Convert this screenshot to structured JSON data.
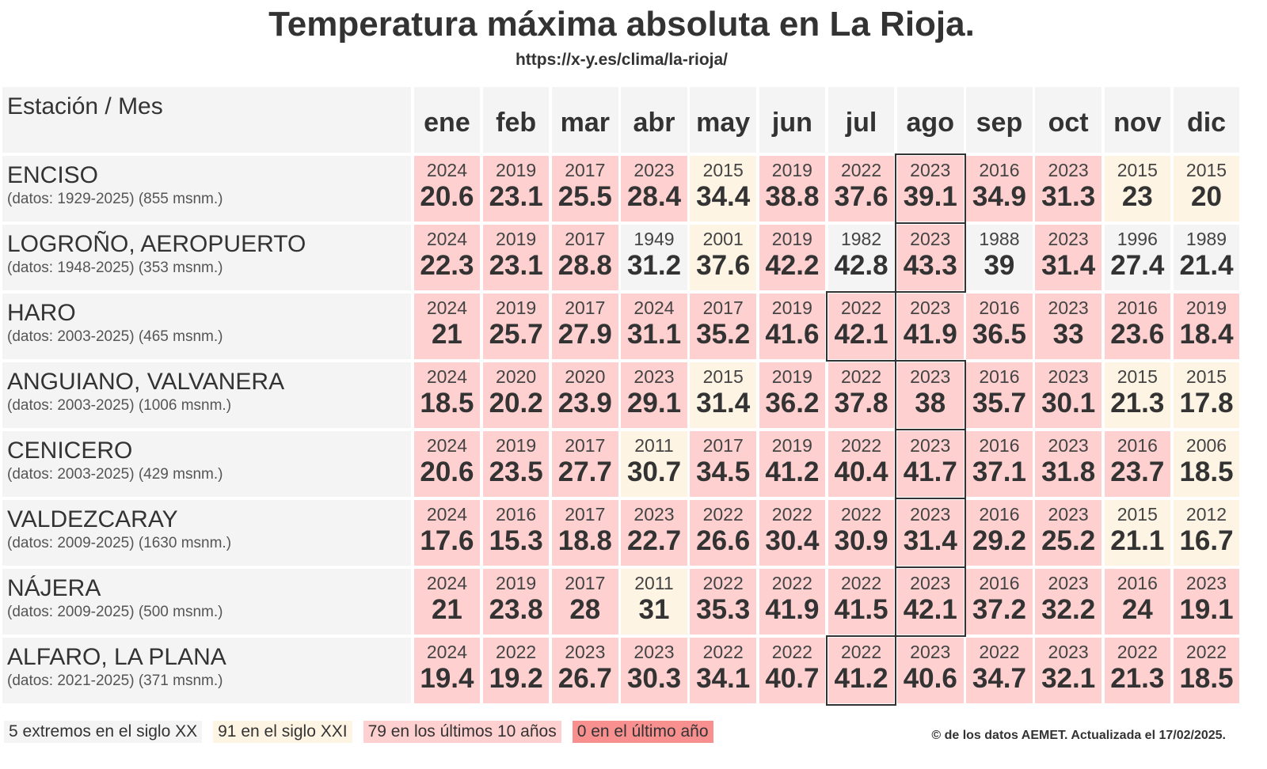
{
  "title": "Temperatura máxima absoluta en La Rioja.",
  "url": "https://x-y.es/clima/la-rioja/",
  "header_label": "Estación / Mes",
  "months": [
    "ene",
    "feb",
    "mar",
    "abr",
    "may",
    "jun",
    "jul",
    "ago",
    "sep",
    "oct",
    "nov",
    "dic"
  ],
  "colors": {
    "siglo_xx": "#f4f4f4",
    "siglo_xxi": "#fef4e4",
    "ultimos_10": "#ffd0d0",
    "ultimo_ano": "#f89090"
  },
  "stations": [
    {
      "name": "ENCISO",
      "info": "(datos: 1929-2025) (855 msnm.)",
      "years": [
        "2024",
        "2019",
        "2017",
        "2023",
        "2015",
        "2019",
        "2022",
        "2023",
        "2016",
        "2023",
        "2015",
        "2015"
      ],
      "values": [
        "20.6",
        "23.1",
        "25.5",
        "28.4",
        "34.4",
        "38.8",
        "37.6",
        "39.1",
        "34.9",
        "31.3",
        "23",
        "20"
      ]
    },
    {
      "name": "LOGROÑO, AEROPUERTO",
      "info": "(datos: 1948-2025) (353 msnm.)",
      "years": [
        "2024",
        "2019",
        "2017",
        "1949",
        "2001",
        "2019",
        "1982",
        "2023",
        "1988",
        "2023",
        "1996",
        "1989"
      ],
      "values": [
        "22.3",
        "23.1",
        "28.8",
        "31.2",
        "37.6",
        "42.2",
        "42.8",
        "43.3",
        "39",
        "31.4",
        "27.4",
        "21.4"
      ]
    },
    {
      "name": "HARO",
      "info": "(datos: 2003-2025) (465 msnm.)",
      "years": [
        "2024",
        "2019",
        "2017",
        "2024",
        "2017",
        "2019",
        "2022",
        "2023",
        "2016",
        "2023",
        "2016",
        "2019"
      ],
      "values": [
        "21",
        "25.7",
        "27.9",
        "31.1",
        "35.2",
        "41.6",
        "42.1",
        "41.9",
        "36.5",
        "33",
        "23.6",
        "18.4"
      ]
    },
    {
      "name": "ANGUIANO, VALVANERA",
      "info": "(datos: 2003-2025) (1006 msnm.)",
      "years": [
        "2024",
        "2020",
        "2020",
        "2023",
        "2015",
        "2019",
        "2022",
        "2023",
        "2016",
        "2023",
        "2015",
        "2015"
      ],
      "values": [
        "18.5",
        "20.2",
        "23.9",
        "29.1",
        "31.4",
        "36.2",
        "37.8",
        "38",
        "35.7",
        "30.1",
        "21.3",
        "17.8"
      ]
    },
    {
      "name": "CENICERO",
      "info": "(datos: 2003-2025) (429 msnm.)",
      "years": [
        "2024",
        "2019",
        "2017",
        "2011",
        "2017",
        "2019",
        "2022",
        "2023",
        "2016",
        "2023",
        "2016",
        "2006"
      ],
      "values": [
        "20.6",
        "23.5",
        "27.7",
        "30.7",
        "34.5",
        "41.2",
        "40.4",
        "41.7",
        "37.1",
        "31.8",
        "23.7",
        "18.5"
      ]
    },
    {
      "name": "VALDEZCARAY",
      "info": "(datos: 2009-2025) (1630 msnm.)",
      "years": [
        "2024",
        "2016",
        "2017",
        "2023",
        "2022",
        "2022",
        "2022",
        "2023",
        "2016",
        "2023",
        "2015",
        "2012"
      ],
      "values": [
        "17.6",
        "15.3",
        "18.8",
        "22.7",
        "26.6",
        "30.4",
        "30.9",
        "31.4",
        "29.2",
        "25.2",
        "21.1",
        "16.7"
      ]
    },
    {
      "name": "NÁJERA",
      "info": "(datos: 2009-2025) (500 msnm.)",
      "years": [
        "2024",
        "2019",
        "2017",
        "2011",
        "2022",
        "2022",
        "2022",
        "2023",
        "2016",
        "2023",
        "2016",
        "2023"
      ],
      "values": [
        "21",
        "23.8",
        "28",
        "31",
        "35.3",
        "41.9",
        "41.5",
        "42.1",
        "37.2",
        "32.2",
        "24",
        "19.1"
      ]
    },
    {
      "name": "ALFARO, LA PLANA",
      "info": "(datos: 2021-2025) (371 msnm.)",
      "years": [
        "2024",
        "2022",
        "2023",
        "2023",
        "2022",
        "2022",
        "2022",
        "2023",
        "2022",
        "2023",
        "2022",
        "2022"
      ],
      "values": [
        "19.4",
        "19.2",
        "26.7",
        "30.3",
        "34.1",
        "40.7",
        "41.2",
        "40.6",
        "34.7",
        "32.1",
        "21.3",
        "18.5"
      ]
    }
  ],
  "legend": [
    "5 extremos en el siglo XX",
    "91 en el siglo XXI",
    "79 en los últimos 10 años",
    "0 en el último año"
  ],
  "credit": "© de los datos AEMET. Actualizada el 17/02/2025."
}
